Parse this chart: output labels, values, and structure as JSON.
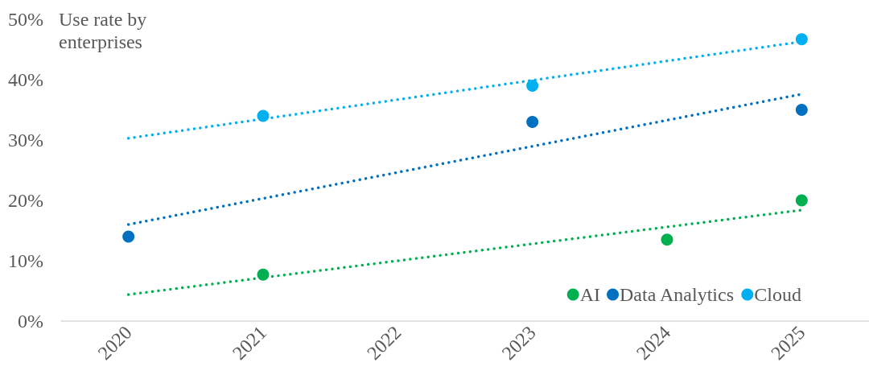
{
  "chart_data": {
    "type": "scatter",
    "ylabel": "Use rate by enterprises",
    "xlim": [
      2019.5,
      2025.5
    ],
    "xticks": [
      2020,
      2021,
      2022,
      2023,
      2024,
      2025
    ],
    "ylim": [
      0,
      50
    ],
    "yticks": [
      {
        "value": 0,
        "label": "0%"
      },
      {
        "value": 10,
        "label": "10%"
      },
      {
        "value": 20,
        "label": "20%"
      },
      {
        "value": 30,
        "label": "30%"
      },
      {
        "value": 40,
        "label": "40%"
      },
      {
        "value": 50,
        "label": "50%"
      }
    ],
    "grid": false,
    "legend": "bottom right",
    "marker": "circle",
    "series": [
      {
        "name": "AI",
        "color": "#00b050",
        "x": [
          2021,
          2024,
          2025
        ],
        "values": [
          7.7,
          13.5,
          20
        ]
      },
      {
        "name": "Data Analytics",
        "color": "#0070c0",
        "x": [
          2020,
          2023,
          2025
        ],
        "values": [
          14,
          33,
          35
        ]
      },
      {
        "name": "Cloud",
        "color": "#00b0f0",
        "x": [
          2021,
          2023,
          2025
        ],
        "values": [
          34,
          39,
          46.7
        ]
      },
      {
        "type": "line",
        "color": "#00b050",
        "x": [
          2020,
          2025
        ],
        "values": [
          4.4,
          18.4
        ],
        "line_style": "dotted",
        "marker": "none"
      },
      {
        "type": "line",
        "color": "#0070c0",
        "x": [
          2020,
          2025
        ],
        "values": [
          16,
          37.6
        ],
        "line_style": "dotted",
        "marker": "none"
      },
      {
        "type": "line",
        "color": "#00b0f0",
        "x": [
          2020,
          2025
        ],
        "values": [
          30.3,
          46.3
        ],
        "line_style": "dotted",
        "marker": "none"
      }
    ]
  }
}
